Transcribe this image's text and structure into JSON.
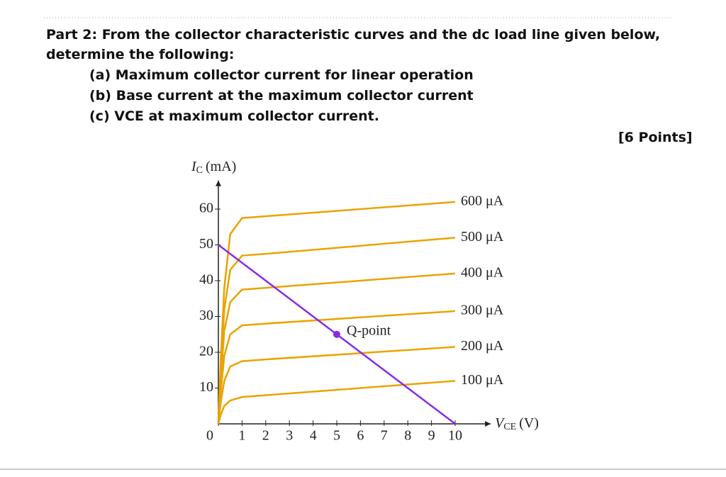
{
  "document": {
    "intro": "Part 2: From the collector characteristic curves and the dc load line given below,",
    "intro2": "determine the following:",
    "items": [
      "(a) Maximum collector current for linear operation",
      "(b) Base current at the maximum collector current",
      "(c) VCE at maximum collector current."
    ],
    "points": "[6 Points]"
  },
  "chart_data": {
    "type": "line",
    "y_label": {
      "symbol": "I",
      "subscript": "C",
      "unit": "(mA)"
    },
    "x_label": {
      "symbol": "V",
      "subscript": "CE",
      "unit": "(V)"
    },
    "x": [
      0,
      0.1,
      0.25,
      0.5,
      1,
      2,
      10
    ],
    "series": [
      {
        "name": "100 μA",
        "color": "#eaa300",
        "values": [
          0,
          2.5,
          5,
          6.5,
          7.5,
          8,
          12
        ]
      },
      {
        "name": "200 μA",
        "color": "#eaa300",
        "values": [
          0,
          6,
          12,
          16,
          17.5,
          18,
          21.5
        ]
      },
      {
        "name": "300 μA",
        "color": "#eaa300",
        "values": [
          0,
          9,
          19,
          25,
          27.5,
          28,
          31.5
        ]
      },
      {
        "name": "400 μA",
        "color": "#eaa300",
        "values": [
          0,
          12,
          26,
          34,
          37.5,
          38,
          42
        ]
      },
      {
        "name": "500 μA",
        "color": "#eaa300",
        "values": [
          0,
          15,
          32,
          43,
          47,
          47.5,
          52
        ]
      },
      {
        "name": "600 μA",
        "color": "#eaa300",
        "values": [
          0,
          18,
          38,
          53,
          57.5,
          58,
          62
        ]
      }
    ],
    "load_line": {
      "x": [
        0,
        10
      ],
      "values": [
        50,
        0
      ],
      "color": "#8a2be2"
    },
    "q_point": {
      "label": "Q-point",
      "x": 5,
      "value": 25
    },
    "xlim": [
      0,
      11.5
    ],
    "ylim": [
      0,
      68
    ],
    "xticks": [
      0,
      1,
      2,
      3,
      4,
      5,
      6,
      7,
      8,
      9,
      10
    ],
    "yticks": [
      10,
      20,
      30,
      40,
      50,
      60
    ]
  }
}
